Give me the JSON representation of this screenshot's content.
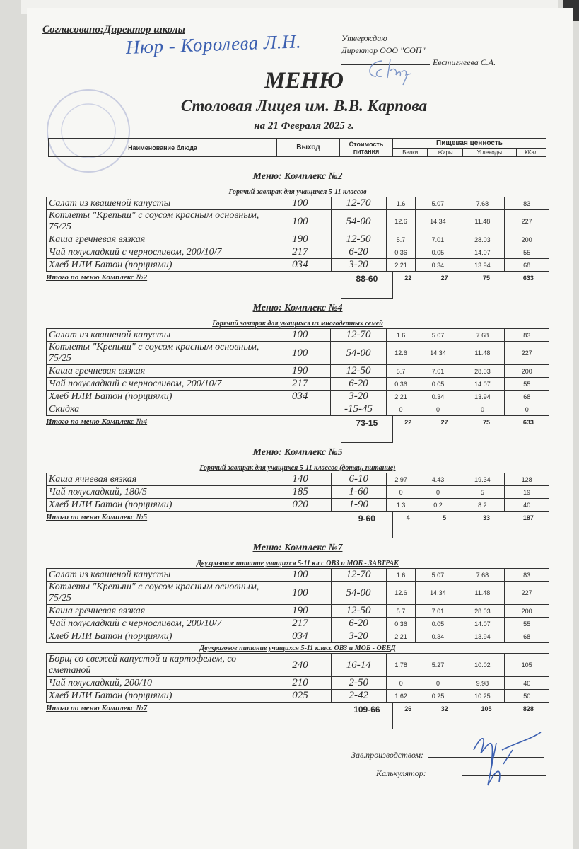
{
  "header": {
    "agreed": "Согласовано:Директор школы",
    "agreed_signature": "Нюр - Королева Л.Н.",
    "approve_line1": "Утверждаю",
    "approve_line2": "Директор ООО \"СОП\"",
    "approve_name": "Евстигнеева С.А.",
    "title": "МЕНЮ",
    "subtitle": "Столовая Лицея им. В.В. Карпова",
    "date": "на 21 Февраля 2025 г."
  },
  "columns": {
    "name": "Наименование блюда",
    "output": "Выход",
    "cost": "Стоимость питания",
    "nutrition": "Пищевая ценность",
    "protein": "Белки",
    "fat": "Жиры",
    "carbs": "Углеводы",
    "kcal": "ККал"
  },
  "sections": [
    {
      "title": "Меню: Комплекс №2",
      "groups": [
        {
          "subtitle": "Горячий завтрак для учащихся 5-11 классов",
          "rows": [
            {
              "name": "Салат из квашеной капусты",
              "output": "100",
              "cost": "12-70",
              "protein": "1.6",
              "fat": "5.07",
              "carbs": "7.68",
              "kcal": "83"
            },
            {
              "name": "Котлеты  \"Крепыш\" с соусом красным основным, 75/25",
              "output": "100",
              "cost": "54-00",
              "protein": "12.6",
              "fat": "14.34",
              "carbs": "11.48",
              "kcal": "227"
            },
            {
              "name": "Каша гречневая вязкая",
              "output": "190",
              "cost": "12-50",
              "protein": "5.7",
              "fat": "7.01",
              "carbs": "28.03",
              "kcal": "200"
            },
            {
              "name": "Чай полусладкий с черносливом, 200/10/7",
              "output": "217",
              "cost": "6-20",
              "protein": "0.36",
              "fat": "0.05",
              "carbs": "14.07",
              "kcal": "55"
            },
            {
              "name": "Хлеб ИЛИ Батон (порциями)",
              "output": "034",
              "cost": "3-20",
              "protein": "2.21",
              "fat": "0.34",
              "carbs": "13.94",
              "kcal": "68"
            }
          ]
        }
      ],
      "total": {
        "label": "Итого по меню Комплекс №2",
        "cost": "88-60",
        "protein": "22",
        "fat": "27",
        "carbs": "75",
        "kcal": "633"
      }
    },
    {
      "title": "Меню: Комплекс №4",
      "groups": [
        {
          "subtitle": "Горячий завтрак для учащихся из многодетных семей",
          "rows": [
            {
              "name": "Салат из квашеной капусты",
              "output": "100",
              "cost": "12-70",
              "protein": "1.6",
              "fat": "5.07",
              "carbs": "7.68",
              "kcal": "83"
            },
            {
              "name": "Котлеты  \"Крепыш\" с соусом красным основным, 75/25",
              "output": "100",
              "cost": "54-00",
              "protein": "12.6",
              "fat": "14.34",
              "carbs": "11.48",
              "kcal": "227"
            },
            {
              "name": "Каша гречневая вязкая",
              "output": "190",
              "cost": "12-50",
              "protein": "5.7",
              "fat": "7.01",
              "carbs": "28.03",
              "kcal": "200"
            },
            {
              "name": "Чай полусладкий с черносливом, 200/10/7",
              "output": "217",
              "cost": "6-20",
              "protein": "0.36",
              "fat": "0.05",
              "carbs": "14.07",
              "kcal": "55"
            },
            {
              "name": "Хлеб ИЛИ Батон (порциями)",
              "output": "034",
              "cost": "3-20",
              "protein": "2.21",
              "fat": "0.34",
              "carbs": "13.94",
              "kcal": "68"
            },
            {
              "name": "Скидка",
              "output": "",
              "cost": "-15-45",
              "protein": "0",
              "fat": "0",
              "carbs": "0",
              "kcal": "0"
            }
          ]
        }
      ],
      "total": {
        "label": "Итого по меню Комплекс №4",
        "cost": "73-15",
        "protein": "22",
        "fat": "27",
        "carbs": "75",
        "kcal": "633"
      }
    },
    {
      "title": "Меню: Комплекс №5",
      "groups": [
        {
          "subtitle": "Горячий завтрак для учащихся 5-11 классов (дотац. питание)",
          "rows": [
            {
              "name": "Каша ячневая вязкая",
              "output": "140",
              "cost": "6-10",
              "protein": "2.97",
              "fat": "4.43",
              "carbs": "19.34",
              "kcal": "128"
            },
            {
              "name": "Чай полусладкий, 180/5",
              "output": "185",
              "cost": "1-60",
              "protein": "0",
              "fat": "0",
              "carbs": "5",
              "kcal": "19"
            },
            {
              "name": "Хлеб ИЛИ Батон (порциями)",
              "output": "020",
              "cost": "1-90",
              "protein": "1.3",
              "fat": "0.2",
              "carbs": "8.2",
              "kcal": "40"
            }
          ]
        }
      ],
      "total": {
        "label": "Итого по меню Комплекс №5",
        "cost": "9-60",
        "protein": "4",
        "fat": "5",
        "carbs": "33",
        "kcal": "187"
      }
    },
    {
      "title": "Меню: Комплекс №7",
      "groups": [
        {
          "subtitle": "Двухразовое питание учащихся 5-11 кл с  ОВЗ и МОБ - ЗАВТРАК",
          "rows": [
            {
              "name": "Салат из квашеной капусты",
              "output": "100",
              "cost": "12-70",
              "protein": "1.6",
              "fat": "5.07",
              "carbs": "7.68",
              "kcal": "83"
            },
            {
              "name": "Котлеты  \"Крепыш\" с соусом красным основным, 75/25",
              "output": "100",
              "cost": "54-00",
              "protein": "12.6",
              "fat": "14.34",
              "carbs": "11.48",
              "kcal": "227"
            },
            {
              "name": "Каша гречневая вязкая",
              "output": "190",
              "cost": "12-50",
              "protein": "5.7",
              "fat": "7.01",
              "carbs": "28.03",
              "kcal": "200"
            },
            {
              "name": "Чай полусладкий с черносливом, 200/10/7",
              "output": "217",
              "cost": "6-20",
              "protein": "0.36",
              "fat": "0.05",
              "carbs": "14.07",
              "kcal": "55"
            },
            {
              "name": "Хлеб ИЛИ Батон (порциями)",
              "output": "034",
              "cost": "3-20",
              "protein": "2.21",
              "fat": "0.34",
              "carbs": "13.94",
              "kcal": "68"
            }
          ]
        },
        {
          "subtitle": "Двухразовое питание учащихся 5-11 класс ОВЗ и МОБ - ОБЕД",
          "rows": [
            {
              "name": "Борщ со свежей капустой и картофелем, со сметаной",
              "output": "240",
              "cost": "16-14",
              "protein": "1.78",
              "fat": "5.27",
              "carbs": "10.02",
              "kcal": "105"
            },
            {
              "name": "Чай полусладкий, 200/10",
              "output": "210",
              "cost": "2-50",
              "protein": "0",
              "fat": "0",
              "carbs": "9.98",
              "kcal": "40"
            },
            {
              "name": "Хлеб ИЛИ Батон (порциями)",
              "output": "025",
              "cost": "2-42",
              "protein": "1.62",
              "fat": "0.25",
              "carbs": "10.25",
              "kcal": "50"
            }
          ]
        }
      ],
      "total": {
        "label": "Итого по меню Комплекс №7",
        "cost": "109-66",
        "protein": "26",
        "fat": "32",
        "carbs": "105",
        "kcal": "828"
      }
    }
  ],
  "footer": {
    "production_head": "Зав.производством:",
    "calculator": "Калькулятор:"
  },
  "colors": {
    "ink": "#2a2a2a",
    "signature": "#3b5fb0",
    "paper": "#f7f7f4"
  }
}
